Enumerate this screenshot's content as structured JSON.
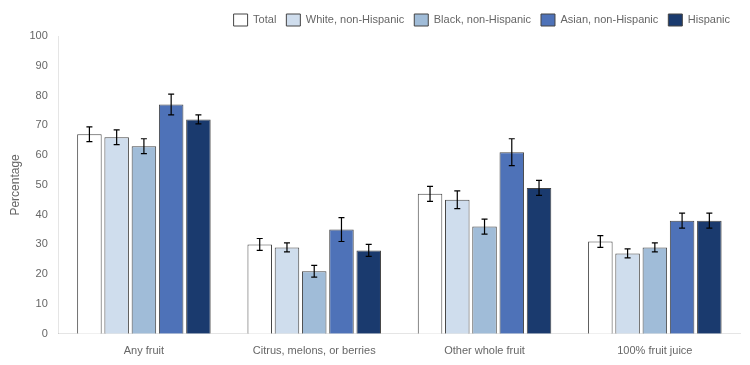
{
  "chart_data": {
    "type": "bar",
    "categories": [
      "Any fruit",
      "Citrus, melons, or berries",
      "Other whole fruit",
      "100% fruit juice"
    ],
    "series": [
      {
        "name": "Total",
        "color": "#ffffff",
        "values": [
          67,
          30,
          47,
          31
        ],
        "errors": [
          2.5,
          2.0,
          2.5,
          2.0
        ]
      },
      {
        "name": "White, non-Hispanic",
        "color": "#cfdded",
        "values": [
          66,
          29,
          45,
          27
        ],
        "errors": [
          2.5,
          1.5,
          3.0,
          1.5
        ]
      },
      {
        "name": "Black, non-Hispanic",
        "color": "#a0bcd8",
        "values": [
          63,
          21,
          36,
          29
        ],
        "errors": [
          2.5,
          2.0,
          2.5,
          1.5
        ]
      },
      {
        "name": "Asian, non-Hispanic",
        "color": "#4e72b8",
        "values": [
          77,
          35,
          61,
          38
        ],
        "errors": [
          3.5,
          4.0,
          4.5,
          2.5
        ]
      },
      {
        "name": "Hispanic",
        "color": "#1a3a6e",
        "values": [
          72,
          28,
          49,
          38
        ],
        "errors": [
          1.5,
          2.0,
          2.5,
          2.5
        ]
      }
    ],
    "ylabel": "Percentage",
    "ylim": [
      0,
      100
    ],
    "yticks": [
      0,
      10,
      20,
      30,
      40,
      50,
      60,
      70,
      80,
      90,
      100
    ],
    "grid": false,
    "legend": "upper right"
  }
}
